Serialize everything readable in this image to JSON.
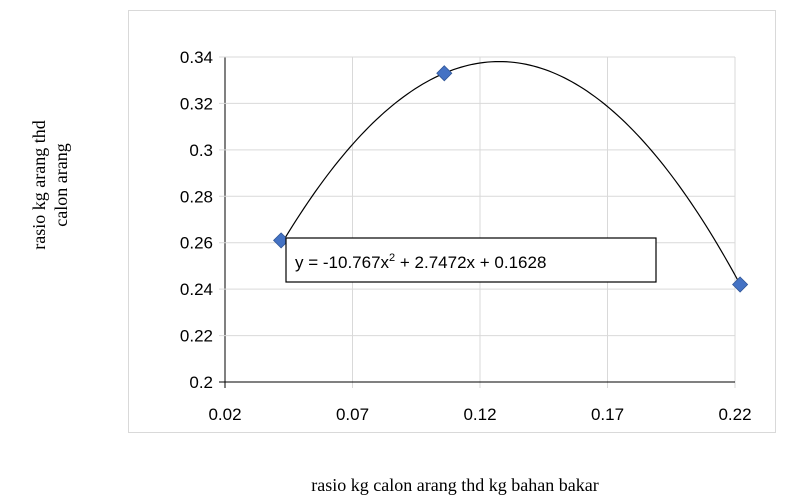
{
  "chart_data": {
    "type": "scatter",
    "xlabel": "rasio kg calon arang thd kg bahan bakar",
    "ylabel_lines": [
      "rasio kg arang thd",
      "calon arang"
    ],
    "xlim": [
      0.02,
      0.22
    ],
    "ylim": [
      0.2,
      0.34
    ],
    "x_ticks": [
      "0.02",
      "0.07",
      "0.12",
      "0.17",
      "0.22"
    ],
    "y_ticks": [
      "0.2",
      "0.22",
      "0.24",
      "0.26",
      "0.28",
      "0.3",
      "0.32",
      "0.34"
    ],
    "grid": true,
    "points": [
      {
        "x": 0.042,
        "y": 0.261
      },
      {
        "x": 0.106,
        "y": 0.333
      },
      {
        "x": 0.222,
        "y": 0.242
      }
    ],
    "marker_color": "#4472C4",
    "trendline": {
      "type": "polynomial",
      "coefficients": [
        -10.767,
        2.7472,
        0.1628
      ],
      "label_prefix": "y = -10.767x",
      "label_sup": "2",
      "label_suffix": " + 2.7472x + 0.1628"
    }
  }
}
